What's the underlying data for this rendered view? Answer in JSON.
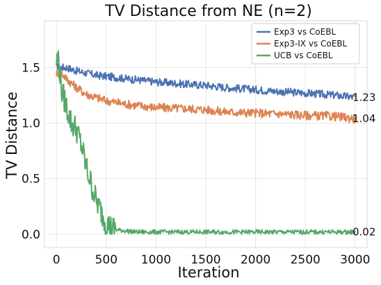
{
  "chart_data": {
    "type": "line",
    "title": "TV Distance from NE (n=2)",
    "xlabel": "Iteration",
    "ylabel": "TV Distance",
    "xlim": [
      -120,
      3120
    ],
    "ylim": [
      -0.12,
      1.92
    ],
    "x_ticks": [
      0,
      500,
      1000,
      1500,
      2000,
      2500,
      3000
    ],
    "y_ticks": [
      0.0,
      0.5,
      1.0,
      1.5
    ],
    "x_tick_labels": [
      "0",
      "500",
      "1000",
      "1500",
      "2000",
      "2500",
      "3000"
    ],
    "y_tick_labels": [
      "0.0",
      "0.5",
      "1.0",
      "1.5"
    ],
    "grid": true,
    "legend_position": "top-right",
    "series": [
      {
        "name": "Exp3 vs CoEBL",
        "color": "#4c72b0",
        "x": [
          0,
          50,
          100,
          200,
          300,
          400,
          500,
          700,
          1000,
          1300,
          1500,
          1700,
          2000,
          2300,
          2500,
          2800,
          3000
        ],
        "values": [
          1.52,
          1.5,
          1.5,
          1.47,
          1.45,
          1.43,
          1.42,
          1.4,
          1.37,
          1.35,
          1.34,
          1.32,
          1.3,
          1.28,
          1.27,
          1.25,
          1.23
        ],
        "end_label": "1.23"
      },
      {
        "name": "Exp3-IX vs CoEBL",
        "color": "#dd8452",
        "x": [
          0,
          50,
          100,
          200,
          300,
          400,
          500,
          700,
          1000,
          1300,
          1500,
          1700,
          2000,
          2300,
          2500,
          2800,
          3000
        ],
        "values": [
          1.45,
          1.45,
          1.4,
          1.32,
          1.26,
          1.23,
          1.2,
          1.17,
          1.14,
          1.13,
          1.12,
          1.1,
          1.09,
          1.08,
          1.07,
          1.06,
          1.04
        ],
        "end_label": "1.04"
      },
      {
        "name": "UCB vs CoEBL",
        "color": "#55a868",
        "x": [
          0,
          20,
          50,
          100,
          150,
          200,
          250,
          300,
          350,
          400,
          450,
          500,
          550,
          600,
          700,
          800,
          1000,
          1500,
          2000,
          2500,
          3000
        ],
        "values": [
          1.55,
          1.6,
          1.3,
          1.15,
          1.0,
          0.95,
          0.8,
          0.6,
          0.45,
          0.3,
          0.2,
          0.1,
          0.06,
          0.04,
          0.03,
          0.02,
          0.02,
          0.02,
          0.02,
          0.02,
          0.02
        ],
        "end_label": "0.02"
      }
    ]
  }
}
